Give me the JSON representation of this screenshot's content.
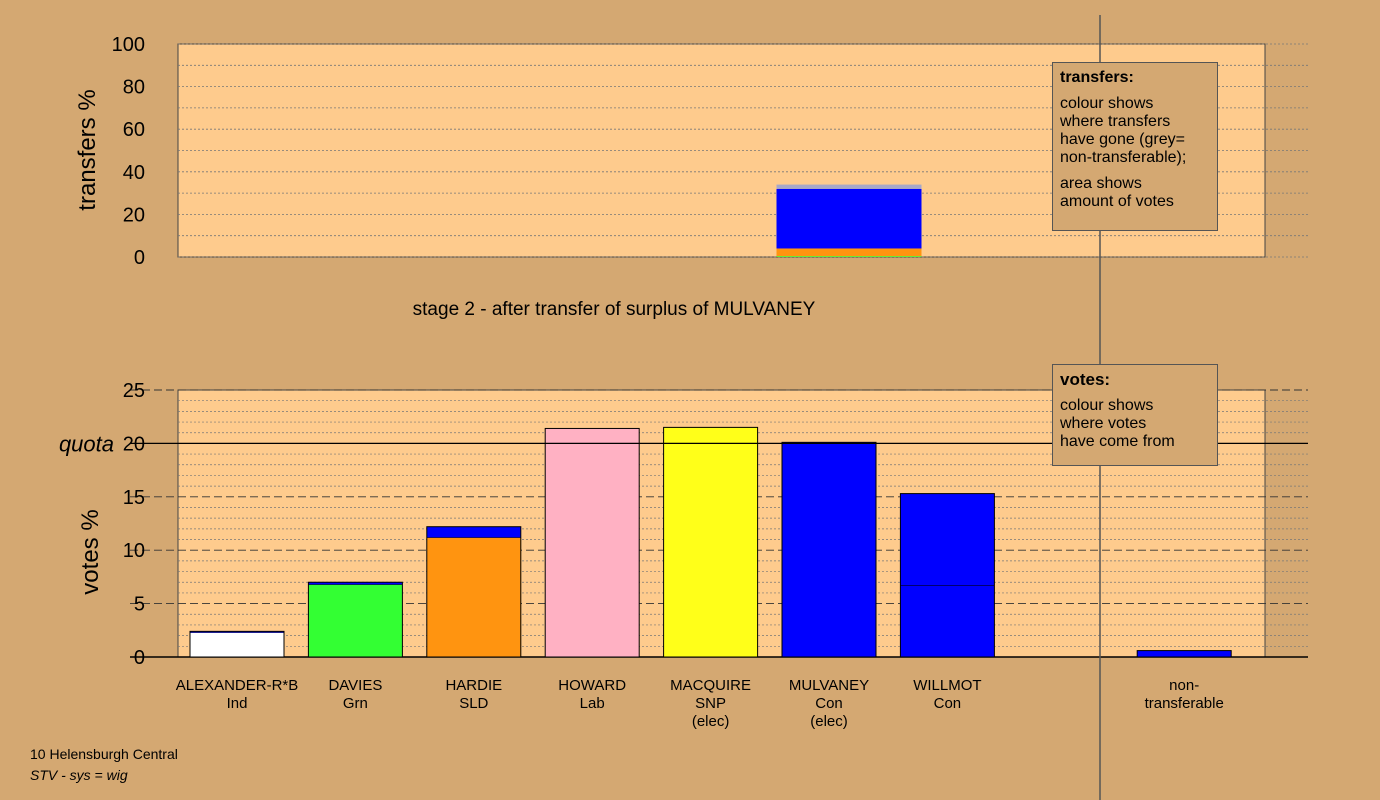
{
  "footer": {
    "line1": "10 Helensburgh Central",
    "line2": "STV - sys = wig"
  },
  "legend_transfers": {
    "title": "transfers:",
    "text1": "colour shows\nwhere transfers\nhave gone (grey=\nnon-transferable);",
    "text2": "area shows\namount of votes"
  },
  "legend_votes": {
    "title": "votes:",
    "text1": "colour shows\nwhere votes\nhave come from"
  },
  "colors": {
    "background": "#d4a872",
    "plot_bg": "#fecb8d",
    "ind": "#ffffff",
    "grn": "#33ff33",
    "sld": "#ff9410",
    "lab": "#ffb1c3",
    "snp": "#ffff19",
    "con": "#0000ff",
    "nontransferable": "#a8a8c8"
  },
  "chart_data": [
    {
      "type": "bar",
      "title": "stage 2 - after transfer of surplus of MULVANEY",
      "ylabel": "transfers %",
      "ylim": [
        0,
        100
      ],
      "yticks": [
        "0",
        "20",
        "40",
        "60",
        "80",
        "100"
      ],
      "bars": [
        {
          "column": "MULVANEY",
          "segments": [
            {
              "party": "grn",
              "value": 0.4
            },
            {
              "party": "sld",
              "value": 3.6
            },
            {
              "party": "con",
              "value": 28.0
            },
            {
              "party": "nontransferable",
              "value": 2.0
            }
          ]
        }
      ]
    },
    {
      "type": "bar",
      "ylabel": "votes %",
      "ylim": [
        0,
        25
      ],
      "yticks": [
        "0",
        "5",
        "10",
        "15",
        "20",
        "25"
      ],
      "quota_label": "quota",
      "quota": 20,
      "categories": [
        {
          "name": "ALEXANDER-R*B",
          "party": "Ind",
          "elec": ""
        },
        {
          "name": "DAVIES",
          "party": "Grn",
          "elec": ""
        },
        {
          "name": "HARDIE",
          "party": "SLD",
          "elec": ""
        },
        {
          "name": "HOWARD",
          "party": "Lab",
          "elec": ""
        },
        {
          "name": "MACQUIRE",
          "party": "SNP",
          "elec": "(elec)"
        },
        {
          "name": "MULVANEY",
          "party": "Con",
          "elec": "(elec)"
        },
        {
          "name": "WILLMOT",
          "party": "Con",
          "elec": ""
        },
        {
          "name": "",
          "party": "",
          "elec": ""
        },
        {
          "name": "non-",
          "party": "transferable",
          "elec": ""
        }
      ],
      "series": [
        {
          "candidate": "ALEXANDER-R*B",
          "segments": [
            {
              "from": "ind",
              "value": 2.3
            },
            {
              "from": "con",
              "value": 0.1
            }
          ]
        },
        {
          "candidate": "DAVIES",
          "segments": [
            {
              "from": "grn",
              "value": 6.8
            },
            {
              "from": "con",
              "value": 0.2
            }
          ]
        },
        {
          "candidate": "HARDIE",
          "segments": [
            {
              "from": "sld",
              "value": 11.2
            },
            {
              "from": "con",
              "value": 1.0
            }
          ]
        },
        {
          "candidate": "HOWARD",
          "segments": [
            {
              "from": "lab",
              "value": 21.4
            }
          ]
        },
        {
          "candidate": "MACQUIRE",
          "segments": [
            {
              "from": "snp",
              "value": 21.5
            }
          ]
        },
        {
          "candidate": "MULVANEY",
          "segments": [
            {
              "from": "con",
              "value": 20.1
            }
          ]
        },
        {
          "candidate": "WILLMOT",
          "segments": [
            {
              "from": "con",
              "value": 6.7
            },
            {
              "from": "con",
              "value": 8.6
            }
          ]
        },
        {
          "candidate": "",
          "segments": []
        },
        {
          "candidate": "non-transferable",
          "segments": [
            {
              "from": "con",
              "value": 0.6
            }
          ]
        }
      ]
    }
  ]
}
